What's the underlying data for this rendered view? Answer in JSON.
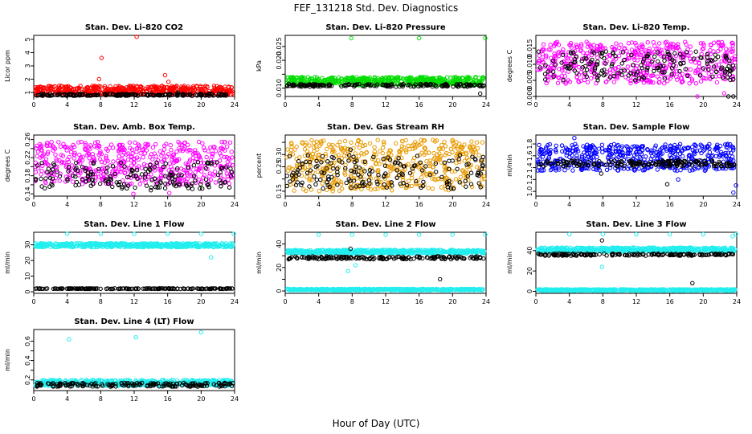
{
  "title": "FEF_131218  Std. Dev. Diagnostics",
  "xlabel": "Hour of Day (UTC)",
  "colors": {
    "orange": "#e89a00",
    "red": "#ff0000",
    "green": "#00dd00",
    "magenta": "#ff00ff",
    "blue": "#0000ff",
    "cyan": "#22eeee",
    "black": "#000000"
  },
  "chart_data": [
    {
      "type": "scatter",
      "title": "Stan. Dev. Li-820 CO2",
      "ylabel": "Licor ppm",
      "xlim": [
        0,
        24
      ],
      "ylim": [
        0.7,
        5.3
      ],
      "xticks": [
        0,
        4,
        8,
        12,
        16,
        20,
        24
      ],
      "yticks": [
        1,
        2,
        3,
        4,
        5
      ],
      "ytick_labels": [
        "1",
        "2",
        "3",
        "4",
        "5"
      ],
      "series": [
        {
          "color": "red",
          "band": [
            0.8,
            1.5
          ],
          "outliers": [
            [
              0.5,
              1.4
            ],
            [
              8.1,
              3.6
            ],
            [
              12.3,
              5.2
            ],
            [
              15.7,
              2.3
            ],
            [
              7.8,
              2.0
            ],
            [
              16.1,
              1.8
            ]
          ]
        },
        {
          "color": "black",
          "band": [
            0.75,
            0.9
          ],
          "outliers": [
            [
              17.2,
              1.0
            ]
          ]
        }
      ]
    },
    {
      "type": "scatter",
      "title": "Stan. Dev. Li-820 Pressure",
      "ylabel": "kPa",
      "xlim": [
        0,
        24
      ],
      "ylim": [
        0.007,
        0.029
      ],
      "xticks": [
        0,
        4,
        8,
        12,
        16,
        20,
        24
      ],
      "yticks": [
        0.01,
        0.015,
        0.02,
        0.025
      ],
      "ytick_labels": [
        "0.010",
        "",
        "0.020",
        "0.025"
      ],
      "series": [
        {
          "color": "green",
          "band": [
            0.011,
            0.014
          ],
          "outliers": [
            [
              7.9,
              0.028
            ],
            [
              16.0,
              0.028
            ],
            [
              23.9,
              0.028
            ]
          ]
        },
        {
          "color": "black",
          "band": [
            0.0105,
            0.0115
          ],
          "outliers": [
            [
              23.3,
              0.008
            ]
          ]
        }
      ]
    },
    {
      "type": "scatter",
      "title": "Stan. Dev. Li-820 Temp.",
      "ylabel": "degrees C",
      "xlim": [
        0,
        24
      ],
      "ylim": [
        0.0,
        0.019
      ],
      "xticks": [
        0,
        4,
        8,
        12,
        16,
        20,
        24
      ],
      "yticks": [
        0.0,
        0.005,
        0.01,
        0.015
      ],
      "ytick_labels": [
        "0.000",
        "0.005",
        "0.010",
        "0.015"
      ],
      "series": [
        {
          "color": "magenta",
          "band": [
            0.004,
            0.017
          ],
          "outliers": [
            [
              19.3,
              0.0
            ],
            [
              22.5,
              0.001
            ]
          ]
        },
        {
          "color": "black",
          "band": [
            0.005,
            0.014
          ],
          "outliers": [
            [
              23.0,
              0.0
            ],
            [
              23.6,
              0.0
            ]
          ]
        }
      ]
    },
    {
      "type": "scatter",
      "title": "Stan. Dev. Amb. Box Temp.",
      "ylabel": "degrees C",
      "xlim": [
        0,
        24
      ],
      "ylim": [
        0.135,
        0.27
      ],
      "xticks": [
        0,
        4,
        8,
        12,
        16,
        20,
        24
      ],
      "yticks": [
        0.14,
        0.16,
        0.18,
        0.2,
        0.22,
        0.24,
        0.26
      ],
      "ytick_labels": [
        "0.14",
        "",
        "0.18",
        "",
        "0.22",
        "",
        "0.26"
      ],
      "series": [
        {
          "color": "magenta",
          "band": [
            0.16,
            0.255
          ],
          "outliers": [
            [
              11.9,
              0.14
            ],
            [
              16.2,
              0.142
            ]
          ]
        },
        {
          "color": "black",
          "band": [
            0.15,
            0.21
          ],
          "outliers": [
            [
              14.0,
              0.148
            ]
          ]
        }
      ]
    },
    {
      "type": "scatter",
      "title": "Stan. Dev. Gas Stream RH",
      "ylabel": "percent",
      "xlim": [
        0,
        24
      ],
      "ylim": [
        0.13,
        0.38
      ],
      "xticks": [
        0,
        4,
        8,
        12,
        16,
        20,
        24
      ],
      "yticks": [
        0.15,
        0.2,
        0.25,
        0.3,
        0.35
      ],
      "ytick_labels": [
        "0.15",
        "",
        "0.25",
        "0.30",
        ""
      ],
      "series": [
        {
          "color": "orange",
          "band": [
            0.15,
            0.36
          ],
          "outliers": []
        },
        {
          "color": "black",
          "band": [
            0.16,
            0.3
          ],
          "outliers": [
            [
              7.8,
              0.32
            ]
          ]
        }
      ]
    },
    {
      "type": "scatter",
      "title": "Stan. Dev. Sample Flow",
      "ylabel": "ml/min",
      "xlim": [
        0,
        24
      ],
      "ylim": [
        0.92,
        1.95
      ],
      "xticks": [
        0,
        4,
        8,
        12,
        16,
        20,
        24
      ],
      "yticks": [
        1.0,
        1.2,
        1.4,
        1.6,
        1.8
      ],
      "ytick_labels": [
        "1.0",
        "1.2",
        "1.4",
        "1.6",
        "1.8"
      ],
      "series": [
        {
          "color": "blue",
          "band": [
            1.35,
            1.8
          ],
          "outliers": [
            [
              4.6,
              1.9
            ],
            [
              23.6,
              0.98
            ],
            [
              23.9,
              1.1
            ],
            [
              17.0,
              1.2
            ]
          ]
        },
        {
          "color": "black",
          "band": [
            1.42,
            1.52
          ],
          "outliers": [
            [
              15.7,
              1.12
            ],
            [
              7.8,
              1.3
            ]
          ]
        }
      ]
    },
    {
      "type": "scatter",
      "title": "Stan. Dev. Line 1 Flow",
      "ylabel": "ml/min",
      "xlim": [
        0,
        24
      ],
      "ylim": [
        -1,
        38
      ],
      "xticks": [
        0,
        4,
        8,
        12,
        16,
        20,
        24
      ],
      "yticks": [
        0,
        10,
        20,
        30
      ],
      "ytick_labels": [
        "0",
        "10",
        "20",
        "30"
      ],
      "series": [
        {
          "color": "cyan",
          "band": [
            28.5,
            31
          ],
          "outliers": [
            [
              4.0,
              37
            ],
            [
              8.0,
              37
            ],
            [
              12.0,
              37
            ],
            [
              16.0,
              37
            ],
            [
              20.0,
              37
            ],
            [
              23.9,
              37
            ],
            [
              21.2,
              22
            ],
            [
              22.5,
              31
            ]
          ]
        },
        {
          "color": "black",
          "band": [
            1.8,
            2.2
          ],
          "outliers": []
        }
      ]
    },
    {
      "type": "scatter",
      "title": "Stan. Dev. Line 2 Flow",
      "ylabel": "ml/min",
      "xlim": [
        0,
        24
      ],
      "ylim": [
        -2,
        50
      ],
      "xticks": [
        0,
        4,
        8,
        12,
        16,
        20,
        24
      ],
      "yticks": [
        0,
        10,
        20,
        30,
        40
      ],
      "ytick_labels": [
        "0",
        "",
        "20",
        "",
        "40"
      ],
      "series": [
        {
          "color": "cyan",
          "band": [
            32,
            35
          ],
          "outliers": [
            [
              4.0,
              48
            ],
            [
              8.0,
              48
            ],
            [
              12.0,
              48
            ],
            [
              16.0,
              48
            ],
            [
              20.0,
              48
            ],
            [
              23.9,
              48
            ],
            [
              7.5,
              17
            ],
            [
              8.4,
              22
            ]
          ]
        },
        {
          "color": "black",
          "band": [
            27,
            29.5
          ],
          "outliers": [
            [
              18.5,
              10
            ],
            [
              7.8,
              36
            ]
          ]
        },
        {
          "color": "cyan",
          "band": [
            0.5,
            1.8
          ],
          "outliers": []
        }
      ]
    },
    {
      "type": "scatter",
      "title": "Stan. Dev. Line 3 Flow",
      "ylabel": "ml/min",
      "xlim": [
        0,
        24
      ],
      "ylim": [
        -2,
        58
      ],
      "xticks": [
        0,
        4,
        8,
        12,
        16,
        20,
        24
      ],
      "yticks": [
        0,
        20,
        40
      ],
      "ytick_labels": [
        "0",
        "20",
        "40"
      ],
      "series": [
        {
          "color": "cyan",
          "band": [
            39,
            43
          ],
          "outliers": [
            [
              4.0,
              56
            ],
            [
              8.0,
              56
            ],
            [
              12.0,
              56
            ],
            [
              16.0,
              56
            ],
            [
              20.0,
              56
            ],
            [
              23.9,
              56
            ],
            [
              7.9,
              24
            ],
            [
              23.5,
              54
            ]
          ]
        },
        {
          "color": "black",
          "band": [
            35,
            37
          ],
          "outliers": [
            [
              18.7,
              8
            ],
            [
              7.9,
              50
            ]
          ]
        },
        {
          "color": "cyan",
          "band": [
            0.5,
            2
          ],
          "outliers": []
        }
      ]
    },
    {
      "type": "scatter",
      "title": "Stan. Dev. Line 4 (LT) Flow",
      "ylabel": "ml/min",
      "xlim": [
        0,
        24
      ],
      "ylim": [
        0.09,
        0.72
      ],
      "xticks": [
        0,
        4,
        8,
        12,
        16,
        20,
        24
      ],
      "yticks": [
        0.2,
        0.3,
        0.4,
        0.5,
        0.6
      ],
      "ytick_labels": [
        "0.2",
        "",
        "0.4",
        "",
        "0.6"
      ],
      "series": [
        {
          "color": "cyan",
          "band": [
            0.14,
            0.2
          ],
          "outliers": [
            [
              4.2,
              0.62
            ],
            [
              12.2,
              0.64
            ],
            [
              20.0,
              0.69
            ]
          ]
        },
        {
          "color": "black",
          "band": [
            0.13,
            0.17
          ],
          "outliers": []
        }
      ]
    }
  ]
}
